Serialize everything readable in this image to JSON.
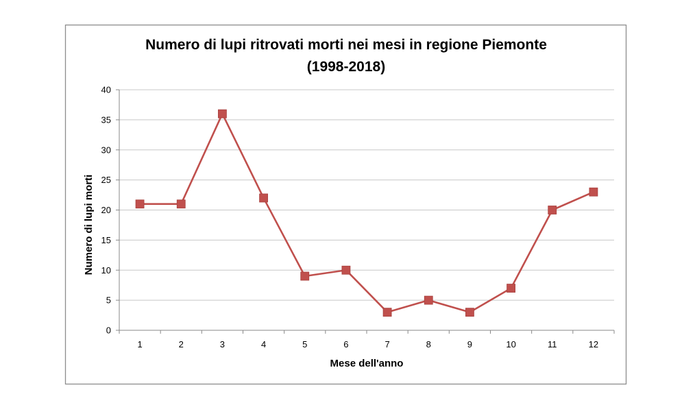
{
  "chart_data": {
    "type": "line",
    "title_line1": "Numero di lupi ritrovati morti nei mesi in regione Piemonte",
    "title_line2": "(1998-2018)",
    "xlabel": "Mese dell'anno",
    "ylabel": "Numero di lupi morti",
    "categories": [
      "1",
      "2",
      "3",
      "4",
      "5",
      "6",
      "7",
      "8",
      "9",
      "10",
      "11",
      "12"
    ],
    "series": [
      {
        "values": [
          21,
          21,
          36,
          22,
          9,
          10,
          3,
          5,
          3,
          7,
          20,
          23
        ]
      }
    ],
    "ylim": [
      0,
      40
    ],
    "yticks": [
      "0",
      "5",
      "10",
      "15",
      "20",
      "25",
      "30",
      "35",
      "40"
    ],
    "grid": true,
    "legend": "none",
    "line_color": "#c0504d",
    "marker": "square",
    "gridline_color": "#c8c8c8",
    "axis_color": "#888888",
    "frame_color": "#8c8c8c"
  }
}
